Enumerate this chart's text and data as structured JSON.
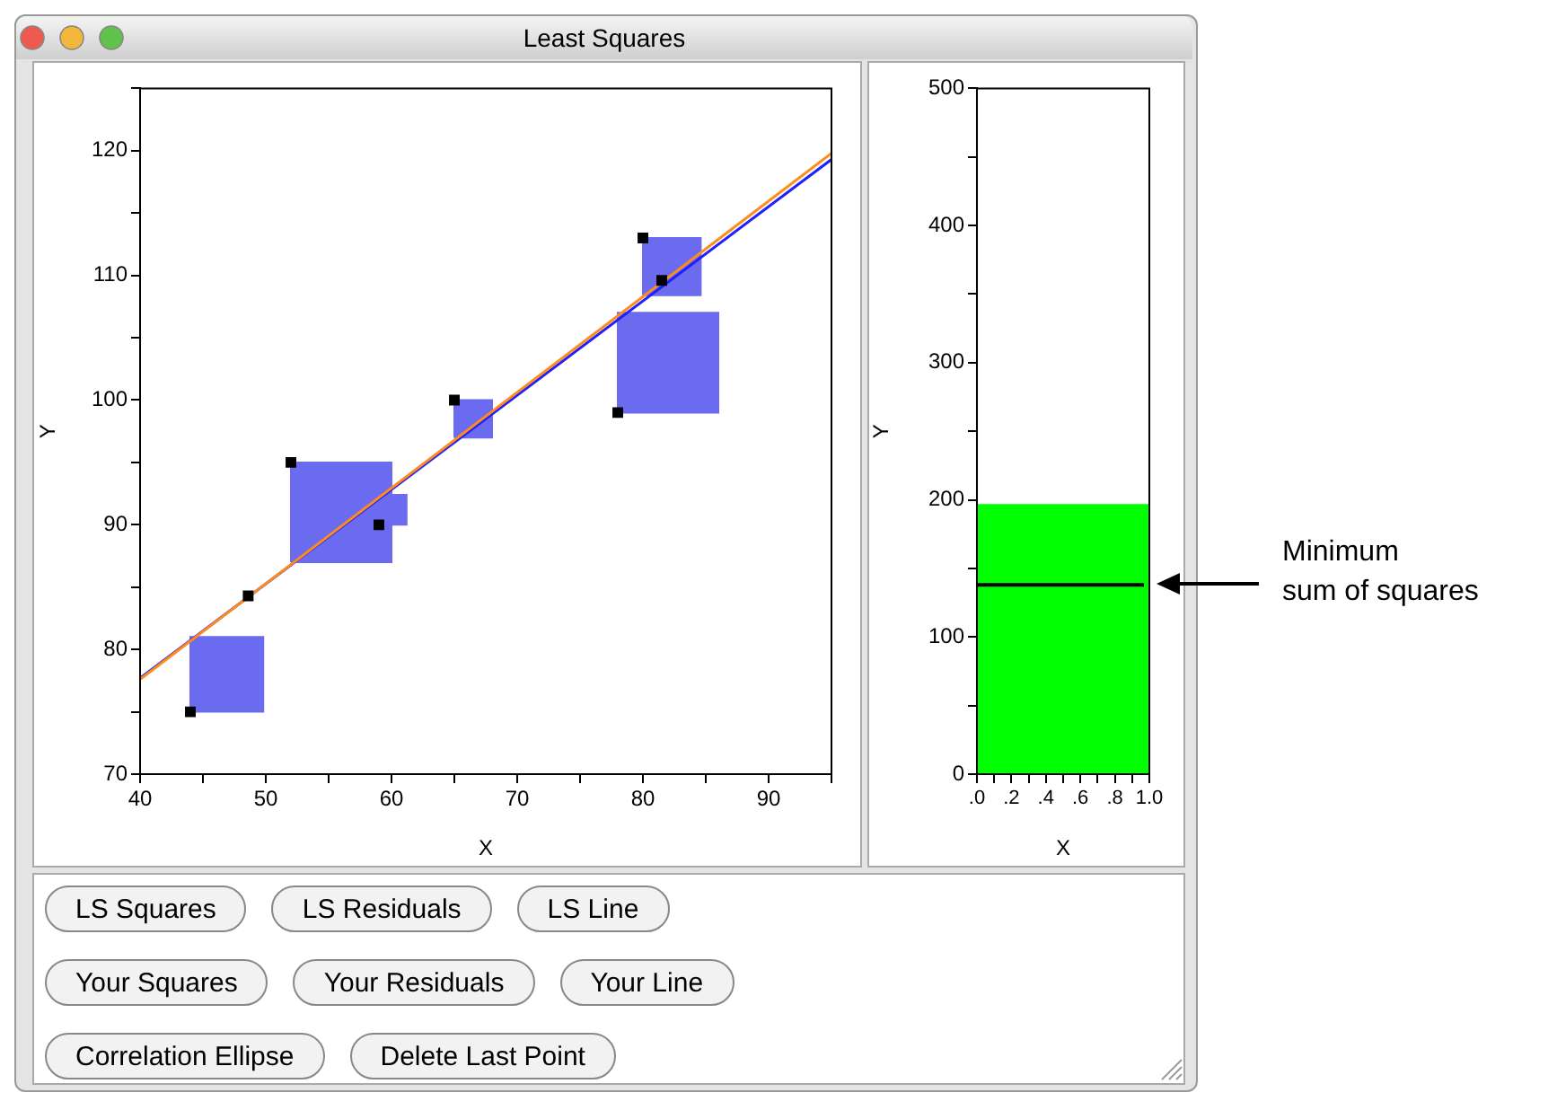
{
  "chart_data": [
    {
      "type": "scatter",
      "title": "Least Squares",
      "annotations": [
        "LS Squares",
        "LS Residuals",
        "LS Line",
        "Your Squares",
        "Your Residuals",
        "Your Line",
        "Correlation Ellipse",
        "Delete Last Point"
      ],
      "xlabel": "X",
      "ylabel": "Y",
      "xlim": [
        40,
        95
      ],
      "ylim": [
        70,
        125
      ],
      "xticks": [
        40,
        {
          "value": 45,
          "label": null
        },
        50,
        {
          "value": 55,
          "label": null
        },
        60,
        {
          "value": 65,
          "label": null
        },
        70,
        {
          "value": 75,
          "label": null
        },
        80,
        {
          "value": 85,
          "label": null
        },
        90,
        {
          "value": 95,
          "label": null
        }
      ],
      "yticks": [
        70,
        {
          "value": 75,
          "label": null
        },
        80,
        {
          "value": 85,
          "label": null
        },
        90,
        {
          "value": 95,
          "label": null
        },
        100,
        {
          "value": 105,
          "label": null
        },
        110,
        {
          "value": 115,
          "label": null
        },
        120,
        {
          "value": 125,
          "label": null
        }
      ],
      "series": [
        {
          "type": "area",
          "color": "#6b6bf0",
          "x": [
            44,
            49.8,
            49.8,
            44,
            44
          ],
          "values": [
            75,
            75,
            81,
            81,
            75
          ]
        },
        {
          "type": "area",
          "color": "#6b6bf0",
          "x": [
            52,
            60,
            60,
            52,
            52
          ],
          "values": [
            87,
            87,
            95,
            95,
            87
          ]
        },
        {
          "type": "area",
          "color": "#6b6bf0",
          "x": [
            59,
            61.2,
            61.2,
            59,
            59
          ],
          "values": [
            90,
            90,
            92.4,
            92.4,
            90
          ]
        },
        {
          "type": "area",
          "color": "#6b6bf0",
          "x": [
            65,
            68,
            68,
            65,
            65
          ],
          "values": [
            97,
            97,
            100,
            100,
            97
          ]
        },
        {
          "type": "area",
          "color": "#6b6bf0",
          "x": [
            78,
            86,
            86,
            78,
            78
          ],
          "values": [
            99,
            99,
            107,
            107,
            99
          ]
        },
        {
          "type": "area",
          "color": "#6b6bf0",
          "x": [
            80,
            84.6,
            84.6,
            80,
            80
          ],
          "values": [
            108.4,
            108.4,
            113,
            113,
            108.4
          ]
        },
        {
          "type": "line",
          "color": "#2020ff",
          "x": [
            40,
            95
          ],
          "values": [
            77.7,
            119.3
          ]
        },
        {
          "type": "line",
          "color": "#ff8c1a",
          "x": [
            40,
            95
          ],
          "values": [
            77.6,
            119.8
          ]
        },
        {
          "type": "scatter",
          "marker": "square",
          "color": "#000000",
          "x": [
            44,
            52,
            59,
            65,
            78,
            80
          ],
          "values": [
            75,
            95,
            90,
            100,
            99,
            113
          ]
        },
        {
          "type": "scatter",
          "marker": "square",
          "color": "#000000",
          "x": [
            48.6,
            81.5
          ],
          "values": [
            84.3,
            109.6
          ]
        }
      ]
    },
    {
      "type": "histogram",
      "xlabel": "X",
      "ylabel": "Y",
      "bins": [
        0,
        1
      ],
      "values": [
        197
      ],
      "color": "#00ff00",
      "xlim": [
        0,
        1
      ],
      "ylim": [
        0,
        500
      ],
      "xticks": [
        {
          "value": 0,
          "label": ".0"
        },
        {
          "value": 0.1,
          "label": null
        },
        {
          "value": 0.2,
          "label": ".2"
        },
        {
          "value": 0.3,
          "label": null
        },
        {
          "value": 0.4,
          "label": ".4"
        },
        {
          "value": 0.5,
          "label": null
        },
        {
          "value": 0.6,
          "label": ".6"
        },
        {
          "value": 0.7,
          "label": null
        },
        {
          "value": 0.8,
          "label": ".8"
        },
        {
          "value": 0.9,
          "label": null
        },
        {
          "value": 1,
          "label": "1.0"
        }
      ],
      "yticks": [
        0,
        {
          "value": 50,
          "label": null
        },
        100,
        {
          "value": 150,
          "label": null
        },
        200,
        {
          "value": 250,
          "label": null
        },
        300,
        {
          "value": 350,
          "label": null
        },
        400,
        {
          "value": 450,
          "label": null
        },
        500
      ],
      "ref_lines": [
        {
          "axis": "y",
          "value": 138,
          "label": "Minimum\nsum of squares",
          "color": "#000000"
        }
      ]
    }
  ]
}
